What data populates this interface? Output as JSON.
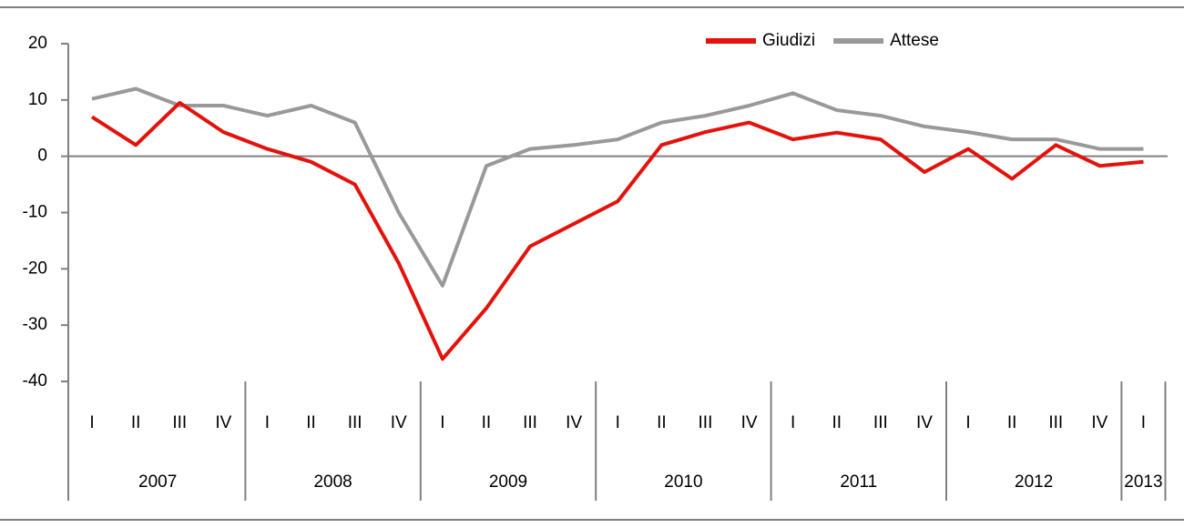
{
  "chart_data": {
    "type": "line",
    "categories": [
      {
        "year": "2007",
        "quarter": "I"
      },
      {
        "year": "2007",
        "quarter": "II"
      },
      {
        "year": "2007",
        "quarter": "III"
      },
      {
        "year": "2007",
        "quarter": "IV"
      },
      {
        "year": "2008",
        "quarter": "I"
      },
      {
        "year": "2008",
        "quarter": "II"
      },
      {
        "year": "2008",
        "quarter": "III"
      },
      {
        "year": "2008",
        "quarter": "IV"
      },
      {
        "year": "2009",
        "quarter": "I"
      },
      {
        "year": "2009",
        "quarter": "II"
      },
      {
        "year": "2009",
        "quarter": "III"
      },
      {
        "year": "2009",
        "quarter": "IV"
      },
      {
        "year": "2010",
        "quarter": "I"
      },
      {
        "year": "2010",
        "quarter": "II"
      },
      {
        "year": "2010",
        "quarter": "III"
      },
      {
        "year": "2010",
        "quarter": "IV"
      },
      {
        "year": "2011",
        "quarter": "I"
      },
      {
        "year": "2011",
        "quarter": "II"
      },
      {
        "year": "2011",
        "quarter": "III"
      },
      {
        "year": "2011",
        "quarter": "IV"
      },
      {
        "year": "2012",
        "quarter": "I"
      },
      {
        "year": "2012",
        "quarter": "II"
      },
      {
        "year": "2012",
        "quarter": "III"
      },
      {
        "year": "2012",
        "quarter": "IV"
      },
      {
        "year": "2013",
        "quarter": "I"
      }
    ],
    "series": [
      {
        "name": "Giudizi",
        "color": "#e3120b",
        "values": [
          7,
          2,
          9.5,
          4.3,
          1.3,
          -1,
          -5,
          -19,
          -36,
          -27,
          -16,
          -12,
          -8,
          2,
          4.3,
          6,
          3,
          4.2,
          3,
          -2.8,
          1.3,
          -4,
          2,
          -1.7,
          -1
        ]
      },
      {
        "name": "Attese",
        "color": "#999999",
        "values": [
          10.2,
          12,
          9,
          9,
          7.2,
          9,
          6,
          -10,
          -23,
          -1.7,
          1.3,
          2,
          3,
          6,
          7.2,
          9,
          11.2,
          8.2,
          7.2,
          5.3,
          4.3,
          3,
          3,
          1.3,
          1.3
        ]
      }
    ],
    "ylim": [
      -40,
      20
    ],
    "yticks": [
      20,
      10,
      0,
      -10,
      -20,
      -30,
      -40
    ],
    "legend": "top-right"
  }
}
